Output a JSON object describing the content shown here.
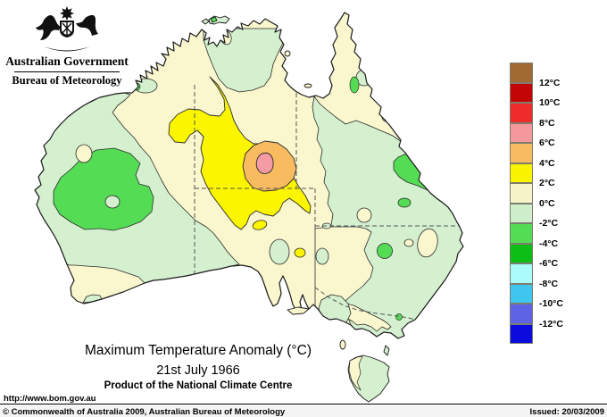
{
  "header": {
    "government": "Australian Government",
    "bureau": "Bureau of Meteorology"
  },
  "title": {
    "line1": "Maximum Temperature Anomaly (°C)",
    "line2": "21st July 1966",
    "line3": "Product of the National Climate Centre"
  },
  "url_text": "http://www.bom.gov.au",
  "footer": {
    "copyright": "© Commonwealth of Australia 2009, Australian Bureau of Meteorology",
    "issued": "Issued: 20/03/2009"
  },
  "legend": {
    "boxes": [
      {
        "range": "above-12",
        "color": "#A16A32"
      },
      {
        "range": "10-12",
        "color": "#C40505"
      },
      {
        "range": "8-10",
        "color": "#EF2C2C"
      },
      {
        "range": "6-8",
        "color": "#F5989E"
      },
      {
        "range": "4-6",
        "color": "#F8BB60"
      },
      {
        "range": "2-4",
        "color": "#FBF400"
      },
      {
        "range": "0-2",
        "color": "#F8F4C9"
      },
      {
        "range": "neg2-0",
        "color": "#CFEECB"
      },
      {
        "range": "neg4-neg2",
        "color": "#55DC55"
      },
      {
        "range": "neg6-neg4",
        "color": "#0CBE15"
      },
      {
        "range": "neg8-neg6",
        "color": "#AAFBFA"
      },
      {
        "range": "neg10-neg8",
        "color": "#3FC6EF"
      },
      {
        "range": "neg12-neg10",
        "color": "#5E62E4"
      },
      {
        "range": "below-neg12",
        "color": "#0B0BDD"
      }
    ],
    "labels": [
      "12°C",
      "10°C",
      "8°C",
      "6°C",
      "4°C",
      "2°C",
      "0°C",
      "-2°C",
      "-4°C",
      "-6°C",
      "-8°C",
      "-10°C",
      "-12°C"
    ]
  },
  "map": {
    "colors": {
      "sea": "#FFFFFF",
      "cream": "#FAF6CD",
      "palegreen": "#D4F0CF",
      "ltgreen": "#55DC55",
      "yellow": "#FCF500",
      "orange": "#F8BB60",
      "pink": "#F59BA4",
      "coast": "#1a1a1a",
      "contour": "#2b2b2b",
      "stateborder": "#555555"
    }
  }
}
